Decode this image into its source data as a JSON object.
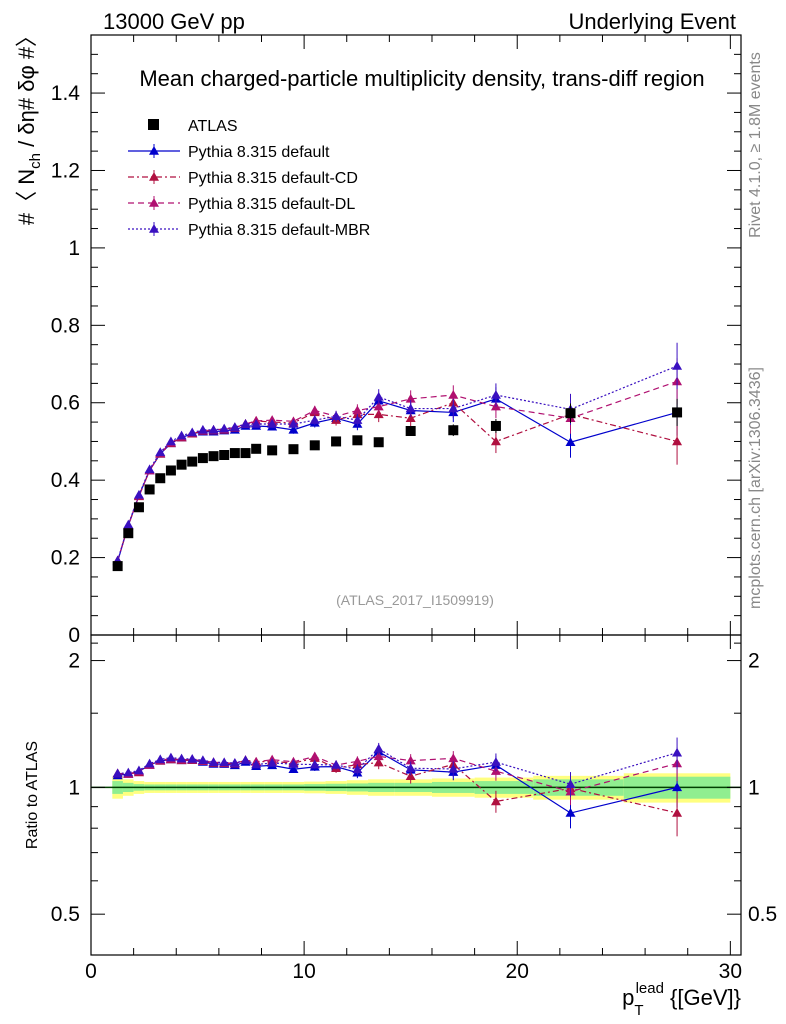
{
  "header": {
    "left": "13000 GeV pp",
    "right": "Underlying Event"
  },
  "side_labels": {
    "rivet": "Rivet 4.1.0, ≥ 1.8M events",
    "mcplots": "mcplots.cern.ch [arXiv:1306.3436]"
  },
  "chart_data": {
    "type": "scatter",
    "title": "Mean charged-particle multiplicity density, trans-diff region",
    "watermark": "(ATLAS_2017_I1509919)",
    "ylabel": "#〈 N_ch / δη# δφ #〉",
    "ylabel_main": "#〈 N",
    "ylabel_sub": "ch",
    "ylabel_rest": " / δη# δφ #〉",
    "xlabel_main": "p",
    "xlabel_sub": "T",
    "xlabel_sup": "lead",
    "xlabel_unit": " {[GeV]}",
    "ratio_ylabel": "Ratio to ATLAS",
    "xlim": [
      0,
      30.5
    ],
    "ylim": [
      0,
      1.55
    ],
    "ratio_ylim": [
      0.4,
      2.3
    ],
    "x_ticks": [
      0,
      10,
      20,
      30
    ],
    "x_tick_labels": [
      "0",
      "10",
      "20",
      "30"
    ],
    "y_ticks": [
      0,
      0.2,
      0.4,
      0.6,
      0.8,
      1,
      1.2,
      1.4
    ],
    "y_tick_labels": [
      "0",
      "0.2",
      "0.4",
      "0.6",
      "0.8",
      "1",
      "1.2",
      "1.4"
    ],
    "ratio_ticks": [
      0.5,
      1,
      2
    ],
    "ratio_tick_labels": [
      "0.5",
      "1",
      "2"
    ],
    "x": [
      1.25,
      1.75,
      2.25,
      2.75,
      3.25,
      3.75,
      4.25,
      4.75,
      5.25,
      5.75,
      6.25,
      6.75,
      7.25,
      7.75,
      8.5,
      9.5,
      10.5,
      11.5,
      12.5,
      13.5,
      15,
      17,
      19,
      22.5,
      27.5
    ],
    "series": [
      {
        "name": "ATLAS",
        "color": "#000000",
        "marker": "square",
        "values": [
          0.178,
          0.263,
          0.33,
          0.376,
          0.405,
          0.425,
          0.44,
          0.448,
          0.457,
          0.462,
          0.465,
          0.47,
          0.47,
          0.481,
          0.477,
          0.48,
          0.49,
          0.5,
          0.503,
          0.498,
          0.527,
          0.529,
          0.54,
          0.573,
          0.575
        ],
        "errors": [
          0.004,
          0.004,
          0.005,
          0.005,
          0.006,
          0.006,
          0.006,
          0.006,
          0.007,
          0.007,
          0.007,
          0.007,
          0.007,
          0.008,
          0.008,
          0.008,
          0.009,
          0.01,
          0.01,
          0.011,
          0.012,
          0.015,
          0.018,
          0.025,
          0.035
        ]
      },
      {
        "name": "Pythia 8.315 default",
        "color": "#0000cc",
        "marker": "triangle",
        "line": "solid",
        "values": [
          0.19,
          0.283,
          0.36,
          0.425,
          0.468,
          0.495,
          0.51,
          0.52,
          0.525,
          0.525,
          0.528,
          0.53,
          0.54,
          0.54,
          0.538,
          0.53,
          0.548,
          0.56,
          0.545,
          0.605,
          0.58,
          0.575,
          0.61,
          0.498,
          0.575
        ],
        "errors": [
          0.003,
          0.004,
          0.004,
          0.005,
          0.005,
          0.006,
          0.006,
          0.006,
          0.006,
          0.007,
          0.007,
          0.007,
          0.008,
          0.008,
          0.009,
          0.01,
          0.012,
          0.014,
          0.016,
          0.02,
          0.022,
          0.025,
          0.03,
          0.04,
          0.06
        ]
      },
      {
        "name": "Pythia 8.315 default-CD",
        "color": "#b01040",
        "marker": "triangle",
        "line": "dashdot",
        "values": [
          0.192,
          0.283,
          0.358,
          0.425,
          0.468,
          0.495,
          0.51,
          0.52,
          0.527,
          0.528,
          0.53,
          0.535,
          0.545,
          0.553,
          0.55,
          0.548,
          0.575,
          0.555,
          0.57,
          0.57,
          0.56,
          0.6,
          0.5,
          0.57,
          0.5
        ],
        "errors": [
          0.003,
          0.004,
          0.004,
          0.005,
          0.005,
          0.006,
          0.006,
          0.006,
          0.006,
          0.007,
          0.007,
          0.007,
          0.008,
          0.008,
          0.009,
          0.01,
          0.012,
          0.014,
          0.016,
          0.02,
          0.022,
          0.025,
          0.03,
          0.04,
          0.06
        ]
      },
      {
        "name": "Pythia 8.315 default-DL",
        "color": "#b01070",
        "marker": "triangle",
        "line": "dashed",
        "values": [
          0.192,
          0.283,
          0.36,
          0.425,
          0.47,
          0.497,
          0.512,
          0.522,
          0.528,
          0.53,
          0.532,
          0.536,
          0.545,
          0.553,
          0.555,
          0.552,
          0.58,
          0.565,
          0.58,
          0.59,
          0.61,
          0.62,
          0.59,
          0.56,
          0.655
        ],
        "errors": [
          0.003,
          0.004,
          0.004,
          0.005,
          0.005,
          0.006,
          0.006,
          0.006,
          0.006,
          0.007,
          0.007,
          0.007,
          0.008,
          0.008,
          0.009,
          0.01,
          0.012,
          0.014,
          0.016,
          0.02,
          0.022,
          0.025,
          0.03,
          0.04,
          0.06
        ]
      },
      {
        "name": "Pythia 8.315 default-MBR",
        "color": "#3a10c0",
        "marker": "triangle",
        "line": "dotted",
        "values": [
          0.192,
          0.285,
          0.362,
          0.428,
          0.472,
          0.5,
          0.515,
          0.523,
          0.53,
          0.53,
          0.533,
          0.537,
          0.545,
          0.545,
          0.545,
          0.545,
          0.555,
          0.565,
          0.555,
          0.615,
          0.585,
          0.585,
          0.62,
          0.583,
          0.695
        ],
        "errors": [
          0.003,
          0.004,
          0.004,
          0.005,
          0.005,
          0.006,
          0.006,
          0.006,
          0.006,
          0.007,
          0.007,
          0.007,
          0.008,
          0.008,
          0.009,
          0.01,
          0.012,
          0.014,
          0.016,
          0.02,
          0.022,
          0.025,
          0.03,
          0.04,
          0.06
        ]
      }
    ],
    "band_colors": {
      "inner": "#90ee90",
      "outer": "#ffff80",
      "reference_line": "#004000"
    },
    "ratio_band_inner": [
      0.035,
      0.025,
      0.018,
      0.016,
      0.016,
      0.016,
      0.016,
      0.016,
      0.016,
      0.016,
      0.016,
      0.016,
      0.016,
      0.016,
      0.016,
      0.016,
      0.018,
      0.02,
      0.022,
      0.025,
      0.025,
      0.03,
      0.035,
      0.045,
      0.06
    ],
    "ratio_band_outer": [
      0.06,
      0.045,
      0.035,
      0.03,
      0.03,
      0.03,
      0.03,
      0.03,
      0.03,
      0.03,
      0.03,
      0.03,
      0.03,
      0.03,
      0.03,
      0.03,
      0.032,
      0.035,
      0.04,
      0.045,
      0.045,
      0.05,
      0.055,
      0.065,
      0.08
    ]
  }
}
